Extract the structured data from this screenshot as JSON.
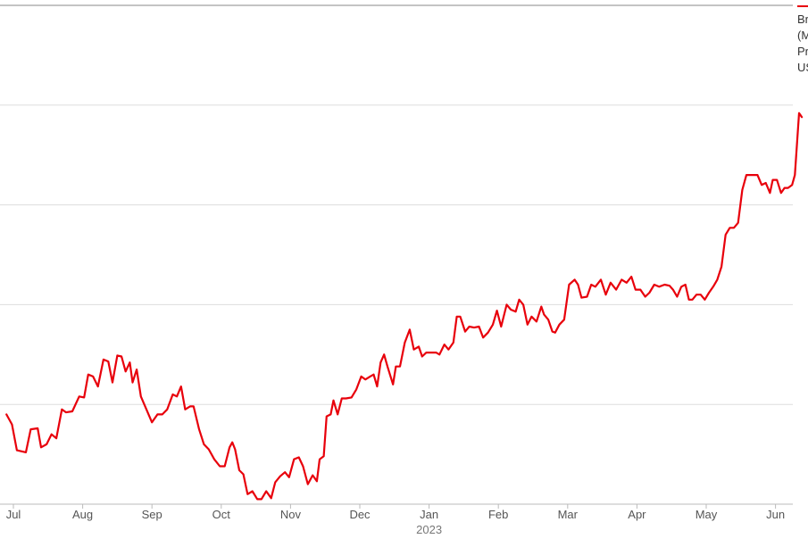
{
  "chart_data": {
    "type": "line",
    "title": "",
    "xlabel": "",
    "ylabel": "",
    "grid": true,
    "legend_placement": "top-right",
    "colors": {
      "line": "#e8000b",
      "grid": "#dddddd",
      "axis": "#bbbbbb",
      "text": "#555555"
    },
    "xlim": [
      0,
      12
    ],
    "ylim": [
      0,
      5
    ],
    "x_ticks": [
      {
        "label": "Jul",
        "x": 0.0
      },
      {
        "label": "Aug",
        "x": 1.0
      },
      {
        "label": "Sep",
        "x": 2.0
      },
      {
        "label": "Oct",
        "x": 3.0
      },
      {
        "label": "Nov",
        "x": 4.0
      },
      {
        "label": "Dec",
        "x": 5.0
      },
      {
        "label": "Jan",
        "x": 6.0
      },
      {
        "label": "Feb",
        "x": 7.0
      },
      {
        "label": "Mar",
        "x": 8.0
      },
      {
        "label": "Apr",
        "x": 9.0
      },
      {
        "label": "May",
        "x": 10.0
      },
      {
        "label": "Jun",
        "x": 11.0
      }
    ],
    "year_label": "2023",
    "legend": {
      "lines": [
        "Br",
        "(M",
        "Pr",
        "US"
      ]
    },
    "series": [
      {
        "points": [
          [
            -0.1,
            0.9
          ],
          [
            -0.02,
            0.8
          ],
          [
            0.05,
            0.54
          ],
          [
            0.18,
            0.52
          ],
          [
            0.25,
            0.75
          ],
          [
            0.35,
            0.76
          ],
          [
            0.4,
            0.57
          ],
          [
            0.48,
            0.6
          ],
          [
            0.55,
            0.7
          ],
          [
            0.62,
            0.66
          ],
          [
            0.7,
            0.95
          ],
          [
            0.76,
            0.92
          ],
          [
            0.85,
            0.93
          ],
          [
            0.95,
            1.08
          ],
          [
            1.02,
            1.07
          ],
          [
            1.08,
            1.3
          ],
          [
            1.15,
            1.28
          ],
          [
            1.22,
            1.18
          ],
          [
            1.3,
            1.45
          ],
          [
            1.37,
            1.43
          ],
          [
            1.43,
            1.22
          ],
          [
            1.5,
            1.49
          ],
          [
            1.56,
            1.48
          ],
          [
            1.62,
            1.33
          ],
          [
            1.68,
            1.42
          ],
          [
            1.72,
            1.22
          ],
          [
            1.78,
            1.35
          ],
          [
            1.84,
            1.08
          ],
          [
            1.92,
            0.95
          ],
          [
            2.0,
            0.82
          ],
          [
            2.08,
            0.9
          ],
          [
            2.15,
            0.9
          ],
          [
            2.22,
            0.95
          ],
          [
            2.3,
            1.1
          ],
          [
            2.36,
            1.08
          ],
          [
            2.42,
            1.18
          ],
          [
            2.48,
            0.95
          ],
          [
            2.55,
            0.98
          ],
          [
            2.6,
            0.98
          ],
          [
            2.68,
            0.75
          ],
          [
            2.75,
            0.6
          ],
          [
            2.82,
            0.55
          ],
          [
            2.9,
            0.45
          ],
          [
            2.98,
            0.38
          ],
          [
            3.05,
            0.38
          ],
          [
            3.12,
            0.57
          ],
          [
            3.16,
            0.62
          ],
          [
            3.2,
            0.55
          ],
          [
            3.26,
            0.34
          ],
          [
            3.32,
            0.3
          ],
          [
            3.38,
            0.1
          ],
          [
            3.45,
            0.13
          ],
          [
            3.52,
            0.05
          ],
          [
            3.58,
            0.05
          ],
          [
            3.65,
            0.13
          ],
          [
            3.72,
            0.06
          ],
          [
            3.78,
            0.22
          ],
          [
            3.85,
            0.28
          ],
          [
            3.92,
            0.32
          ],
          [
            3.98,
            0.27
          ],
          [
            4.05,
            0.45
          ],
          [
            4.12,
            0.47
          ],
          [
            4.18,
            0.38
          ],
          [
            4.25,
            0.2
          ],
          [
            4.32,
            0.29
          ],
          [
            4.38,
            0.23
          ],
          [
            4.42,
            0.45
          ],
          [
            4.48,
            0.48
          ],
          [
            4.52,
            0.88
          ],
          [
            4.58,
            0.9
          ],
          [
            4.62,
            1.04
          ],
          [
            4.68,
            0.9
          ],
          [
            4.74,
            1.06
          ],
          [
            4.8,
            1.06
          ],
          [
            4.88,
            1.07
          ],
          [
            4.95,
            1.15
          ],
          [
            5.02,
            1.28
          ],
          [
            5.08,
            1.25
          ],
          [
            5.15,
            1.28
          ],
          [
            5.2,
            1.3
          ],
          [
            5.25,
            1.18
          ],
          [
            5.3,
            1.42
          ],
          [
            5.35,
            1.5
          ],
          [
            5.4,
            1.38
          ],
          [
            5.48,
            1.2
          ],
          [
            5.52,
            1.38
          ],
          [
            5.58,
            1.38
          ],
          [
            5.65,
            1.62
          ],
          [
            5.72,
            1.75
          ],
          [
            5.78,
            1.55
          ],
          [
            5.85,
            1.58
          ],
          [
            5.9,
            1.48
          ],
          [
            5.96,
            1.52
          ],
          [
            6.02,
            1.52
          ],
          [
            6.1,
            1.52
          ],
          [
            6.15,
            1.5
          ],
          [
            6.22,
            1.6
          ],
          [
            6.28,
            1.55
          ],
          [
            6.35,
            1.62
          ],
          [
            6.4,
            1.88
          ],
          [
            6.45,
            1.88
          ],
          [
            6.52,
            1.73
          ],
          [
            6.58,
            1.78
          ],
          [
            6.65,
            1.77
          ],
          [
            6.72,
            1.78
          ],
          [
            6.78,
            1.67
          ],
          [
            6.85,
            1.72
          ],
          [
            6.92,
            1.8
          ],
          [
            6.98,
            1.94
          ],
          [
            7.04,
            1.78
          ],
          [
            7.12,
            2.0
          ],
          [
            7.18,
            1.95
          ],
          [
            7.25,
            1.93
          ],
          [
            7.3,
            2.05
          ],
          [
            7.36,
            2.0
          ],
          [
            7.42,
            1.8
          ],
          [
            7.48,
            1.88
          ],
          [
            7.55,
            1.83
          ],
          [
            7.62,
            1.98
          ],
          [
            7.66,
            1.9
          ],
          [
            7.72,
            1.85
          ],
          [
            7.78,
            1.73
          ],
          [
            7.82,
            1.72
          ],
          [
            7.88,
            1.8
          ],
          [
            7.95,
            1.85
          ],
          [
            8.02,
            2.2
          ],
          [
            8.1,
            2.25
          ],
          [
            8.15,
            2.2
          ],
          [
            8.2,
            2.07
          ],
          [
            8.28,
            2.08
          ],
          [
            8.34,
            2.2
          ],
          [
            8.4,
            2.18
          ],
          [
            8.48,
            2.25
          ],
          [
            8.55,
            2.1
          ],
          [
            8.62,
            2.22
          ],
          [
            8.7,
            2.15
          ],
          [
            8.78,
            2.25
          ],
          [
            8.85,
            2.22
          ],
          [
            8.92,
            2.28
          ],
          [
            8.98,
            2.15
          ],
          [
            9.05,
            2.15
          ],
          [
            9.12,
            2.08
          ],
          [
            9.18,
            2.12
          ],
          [
            9.25,
            2.2
          ],
          [
            9.32,
            2.18
          ],
          [
            9.4,
            2.2
          ],
          [
            9.47,
            2.19
          ],
          [
            9.52,
            2.15
          ],
          [
            9.58,
            2.08
          ],
          [
            9.64,
            2.18
          ],
          [
            9.7,
            2.2
          ],
          [
            9.75,
            2.05
          ],
          [
            9.8,
            2.05
          ],
          [
            9.86,
            2.1
          ],
          [
            9.92,
            2.1
          ],
          [
            9.98,
            2.05
          ],
          [
            10.04,
            2.12
          ],
          [
            10.1,
            2.18
          ],
          [
            10.16,
            2.25
          ],
          [
            10.22,
            2.38
          ],
          [
            10.28,
            2.7
          ],
          [
            10.34,
            2.77
          ],
          [
            10.4,
            2.77
          ],
          [
            10.46,
            2.82
          ],
          [
            10.52,
            3.15
          ],
          [
            10.58,
            3.3
          ],
          [
            10.62,
            3.3
          ],
          [
            10.68,
            3.3
          ],
          [
            10.74,
            3.3
          ],
          [
            10.8,
            3.2
          ],
          [
            10.86,
            3.22
          ],
          [
            10.92,
            3.12
          ],
          [
            10.96,
            3.25
          ],
          [
            11.02,
            3.25
          ],
          [
            11.08,
            3.12
          ],
          [
            11.13,
            3.17
          ],
          [
            11.18,
            3.17
          ],
          [
            11.24,
            3.2
          ],
          [
            11.28,
            3.3
          ],
          [
            11.34,
            3.92
          ],
          [
            11.38,
            3.88
          ]
        ]
      }
    ]
  }
}
